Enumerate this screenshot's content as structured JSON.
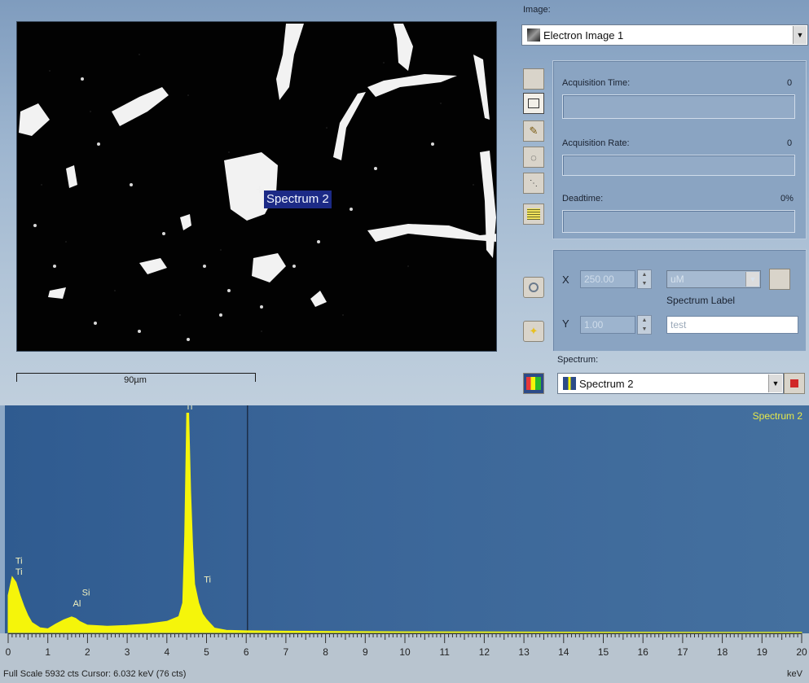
{
  "image_panel": {
    "spectrum_marker": "Spectrum 2",
    "scale_label": "90µm"
  },
  "right_panel": {
    "image_label": "Image:",
    "image_select": "Electron Image 1",
    "acq_time_label": "Acquisition Time:",
    "acq_time_value": "0",
    "acq_rate_label": "Acquisition Rate:",
    "acq_rate_value": "0",
    "deadtime_label": "Deadtime:",
    "deadtime_value": "0%",
    "x_label": "X",
    "x_value": "250.00",
    "y_label": "Y",
    "y_value": "1.00",
    "unit_select": "uM",
    "spectrum_label_caption": "Spectrum Label",
    "spectrum_label_value": "test",
    "spectrum_caption": "Spectrum:",
    "spectrum_select": "Spectrum 2"
  },
  "spectrum": {
    "name": "Spectrum 2",
    "peak_labels": [
      "Ti",
      "Ti",
      "Si",
      "Al",
      "Ti",
      "Ti"
    ],
    "x_ticks": [
      "0",
      "1",
      "2",
      "3",
      "4",
      "5",
      "6",
      "7",
      "8",
      "9",
      "10",
      "11",
      "12",
      "13",
      "14",
      "15",
      "16",
      "17",
      "18",
      "19",
      "20"
    ],
    "x_unit": "keV",
    "status_text": "Full Scale 5932 cts  Cursor: 6.032 keV (76 cts)",
    "trace_color": "#f5f50a"
  },
  "chart_data": {
    "type": "area",
    "title": "",
    "xlabel": "keV",
    "ylabel": "",
    "xlim": [
      0,
      20
    ],
    "ylim": [
      0,
      5932
    ],
    "cursor_kev": 6.032,
    "series": [
      {
        "name": "Spectrum 2",
        "x": [
          0,
          0.1,
          0.2,
          0.3,
          0.4,
          0.5,
          0.6,
          0.8,
          1.0,
          1.2,
          1.4,
          1.5,
          1.6,
          1.7,
          1.8,
          2.0,
          2.5,
          3.0,
          3.5,
          4.0,
          4.3,
          4.4,
          4.45,
          4.5,
          4.55,
          4.6,
          4.65,
          4.7,
          4.8,
          4.9,
          5.0,
          5.2,
          5.5,
          6.0,
          7,
          8,
          10,
          12,
          14,
          16,
          18,
          20
        ],
        "values": [
          1000,
          1500,
          1350,
          1000,
          700,
          450,
          270,
          130,
          100,
          230,
          340,
          380,
          420,
          380,
          300,
          200,
          170,
          190,
          230,
          300,
          430,
          800,
          2600,
          5900,
          5900,
          3800,
          2300,
          1300,
          800,
          500,
          350,
          120,
          60,
          45,
          35,
          30,
          20,
          15,
          10,
          8,
          5,
          5
        ]
      }
    ]
  }
}
